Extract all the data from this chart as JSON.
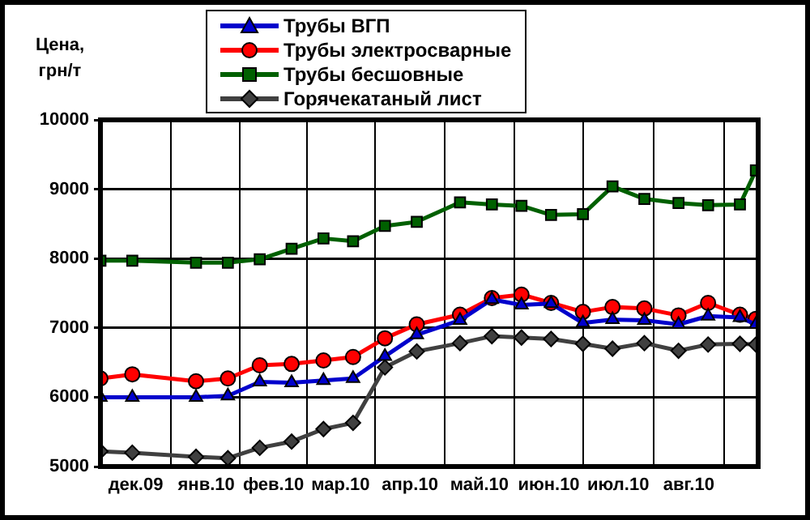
{
  "chart_data": {
    "type": "line",
    "ylabel": "Цена, грн/т",
    "x": [
      "2009-12-01",
      "2009-12-15",
      "2010-01-12",
      "2010-01-26",
      "2010-02-09",
      "2010-02-23",
      "2010-03-09",
      "2010-03-22",
      "2010-04-05",
      "2010-04-19",
      "2010-05-08",
      "2010-05-22",
      "2010-06-04",
      "2010-06-17",
      "2010-07-01",
      "2010-07-14",
      "2010-07-28",
      "2010-08-12",
      "2010-08-25",
      "2010-09-08",
      "2010-09-15"
    ],
    "series": [
      {
        "name": "Трубы ВГП",
        "color": "#0000cc",
        "marker": "triangle",
        "values": [
          6000,
          6000,
          6000,
          6020,
          6220,
          6210,
          6240,
          6270,
          6590,
          6900,
          7110,
          7410,
          7330,
          7350,
          7070,
          7120,
          7110,
          7050,
          7170,
          7150,
          7050
        ]
      },
      {
        "name": "Трубы электросварные",
        "color": "#ff0000",
        "marker": "circle",
        "values": [
          6270,
          6330,
          6230,
          6270,
          6460,
          6480,
          6530,
          6580,
          6850,
          7050,
          7190,
          7430,
          7480,
          7360,
          7230,
          7300,
          7280,
          7180,
          7360,
          7190,
          7130
        ]
      },
      {
        "name": "Трубы бесшовные",
        "color": "#006000",
        "marker": "square",
        "values": [
          7970,
          7970,
          7940,
          7940,
          7990,
          8140,
          8290,
          8250,
          8470,
          8530,
          8810,
          8780,
          8760,
          8630,
          8640,
          9040,
          8860,
          8800,
          8770,
          8780,
          9270
        ]
      },
      {
        "name": "Горячекатаный лист",
        "color": "#404040",
        "marker": "diamond",
        "values": [
          5220,
          5200,
          5140,
          5120,
          5270,
          5360,
          5540,
          5630,
          6430,
          6660,
          6780,
          6880,
          6860,
          6840,
          6770,
          6700,
          6780,
          6670,
          6760,
          6770,
          6760
        ]
      }
    ],
    "xlim": [
      "2009-12-01",
      "2010-09-16"
    ],
    "xticks": [
      {
        "value": "2009-12-16T12:00",
        "label": "дек.09"
      },
      {
        "value": "2010-01-16T12:00",
        "label": "янв.10"
      },
      {
        "value": "2010-02-15",
        "label": "фев.10"
      },
      {
        "value": "2010-03-16T12:00",
        "label": "мар.10"
      },
      {
        "value": "2010-04-16",
        "label": "апр.10"
      },
      {
        "value": "2010-05-16T12:00",
        "label": "май.10"
      },
      {
        "value": "2010-06-16",
        "label": "июн.10"
      },
      {
        "value": "2010-07-16T12:00",
        "label": "июл.10"
      },
      {
        "value": "2010-08-16T12:00",
        "label": "авг.10"
      }
    ],
    "ylim": [
      5000,
      10000
    ],
    "yticks": [
      5000,
      6000,
      7000,
      8000,
      9000,
      10000
    ],
    "grid": true,
    "legend": "top",
    "line_style": "solid"
  }
}
